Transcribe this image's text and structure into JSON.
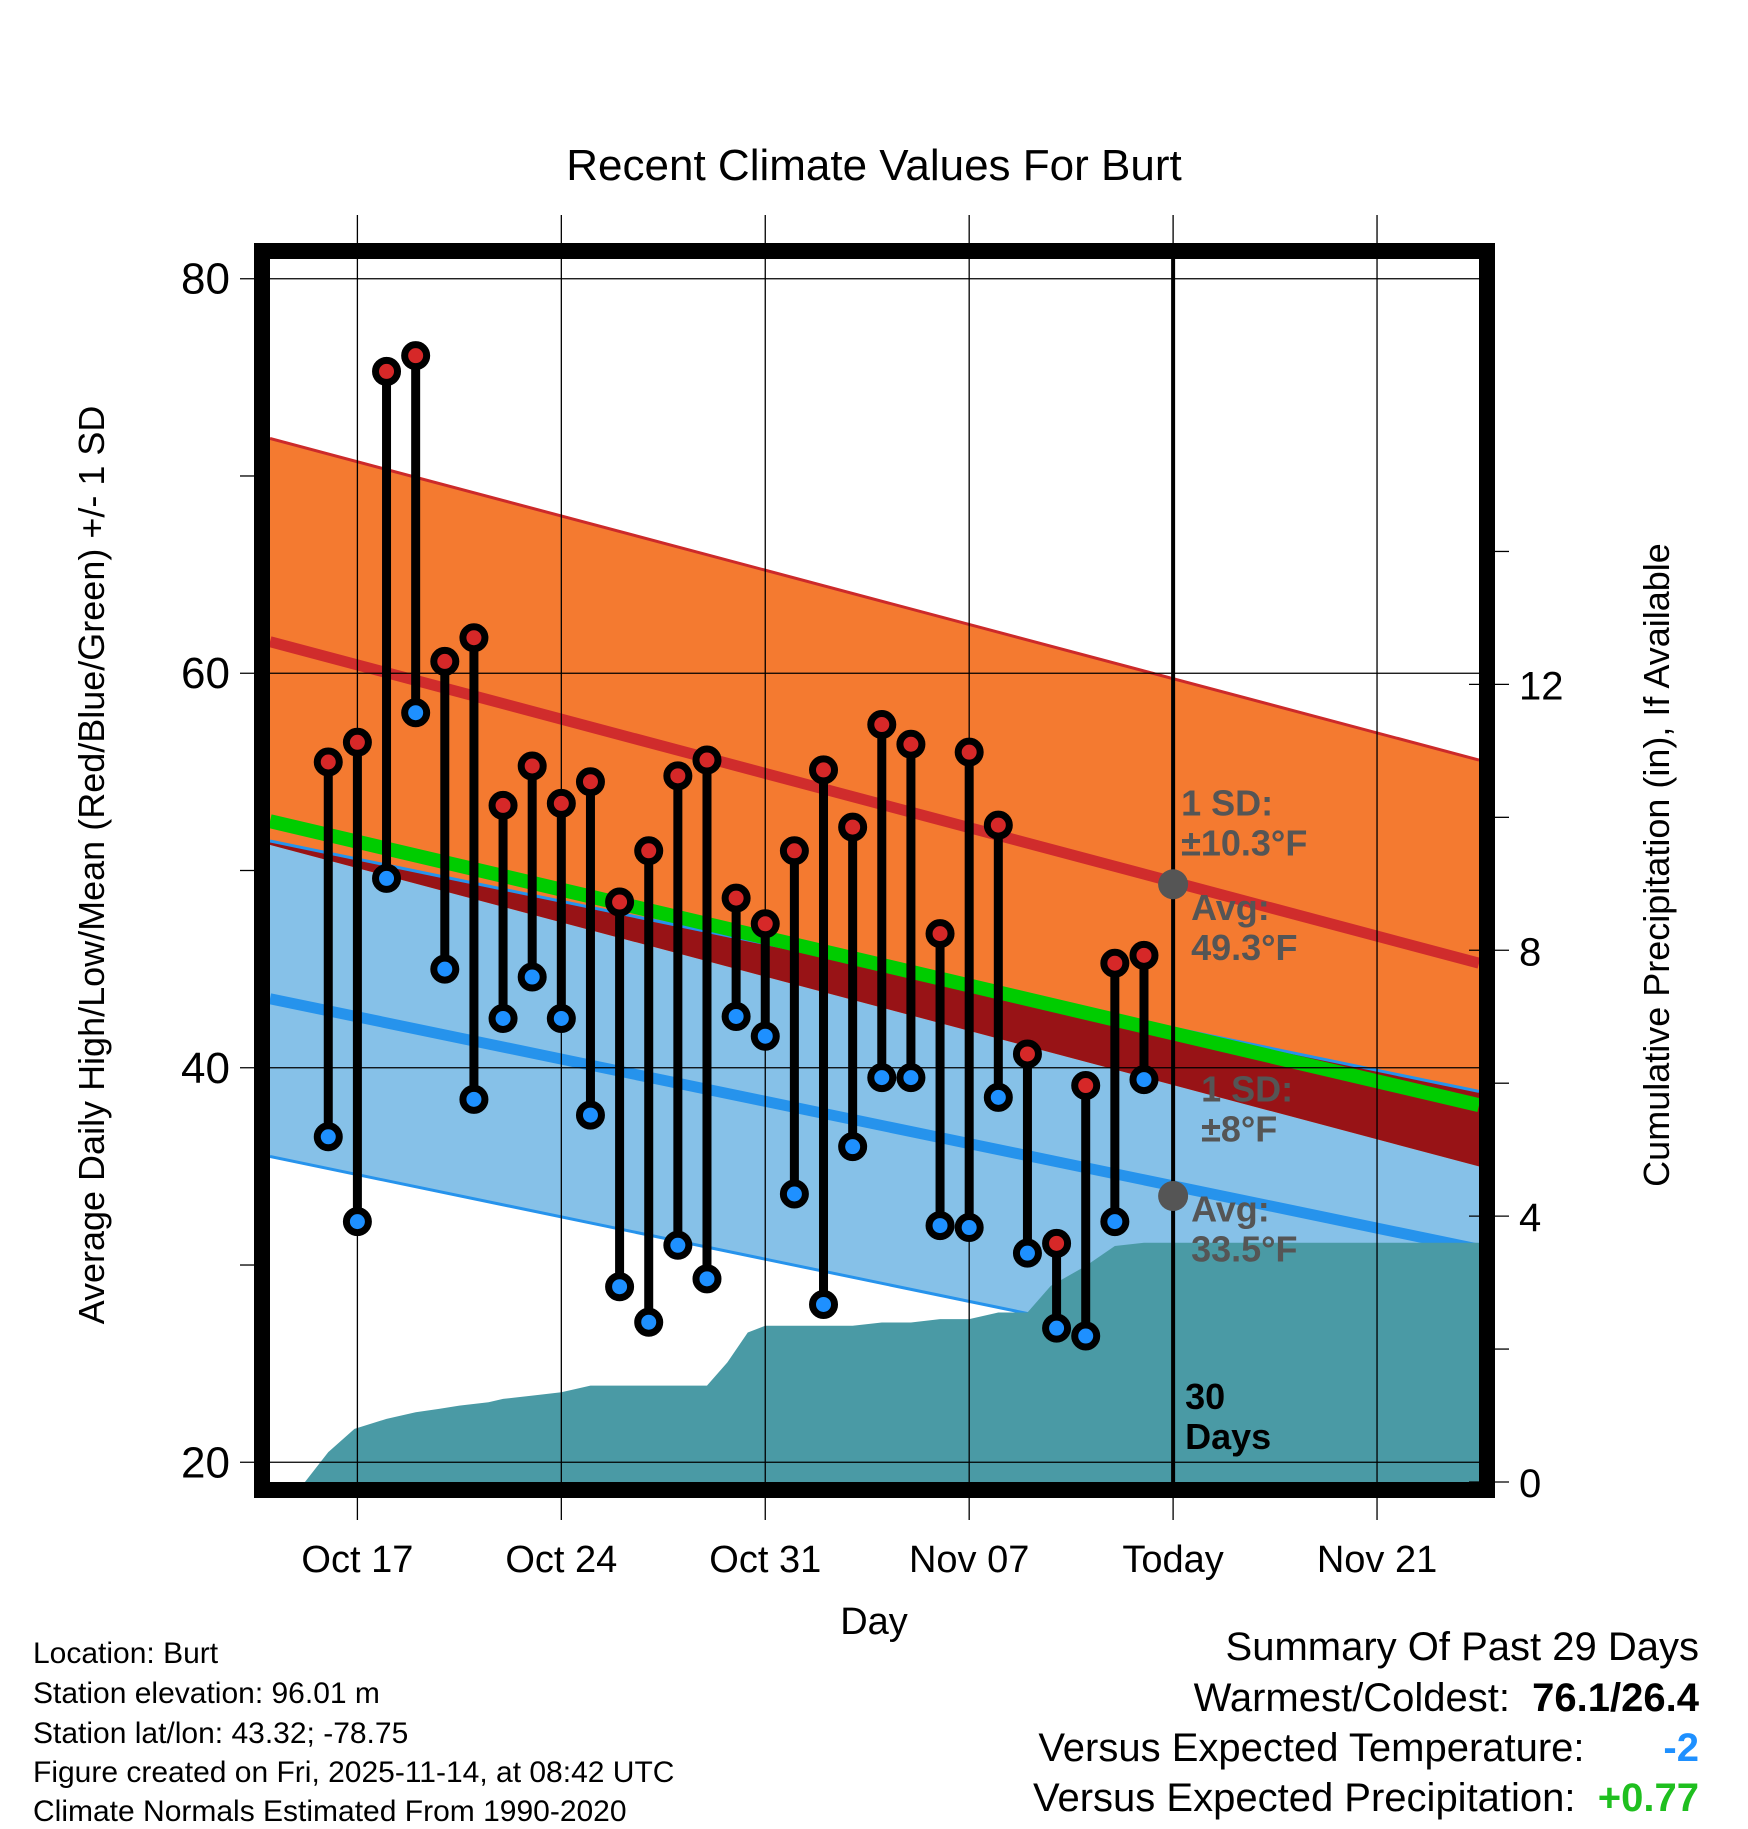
{
  "chart_data": {
    "type": "line",
    "title": "Recent Climate Values For Burt",
    "xlabel": "Day",
    "ylabel": "Average Daily High/Low/Mean (Red/Blue/Green) +/- 1 SD",
    "y2label": "Cumulative Precipitation (in), If Available",
    "ylim": [
      19,
      81
    ],
    "y2lim": [
      0,
      18.4
    ],
    "xlim": [
      -3,
      38.5
    ],
    "yticks": [
      "20",
      "40",
      "60",
      "80"
    ],
    "y2ticks": [
      "0",
      "4",
      "8",
      "12"
    ],
    "xticks": [
      {
        "day": 0,
        "label": "Oct 17"
      },
      {
        "day": 7,
        "label": "Oct 24"
      },
      {
        "day": 14,
        "label": "Oct 31"
      },
      {
        "day": 21,
        "label": "Nov 07"
      },
      {
        "day": 28,
        "label": "Today"
      },
      {
        "day": 35,
        "label": "Nov 21"
      }
    ],
    "today_day": 28,
    "today_label_lines": [
      "30",
      "Days"
    ],
    "normal_high": {
      "start": 61.6,
      "end": 45.3,
      "sd_start": 10.3,
      "sd_end": 10.3
    },
    "normal_low": {
      "start": 43.5,
      "end": 30.8,
      "sd_start": 8,
      "sd_end": 8
    },
    "normal_mean": {
      "start": 52.5,
      "end": 38.1
    },
    "high_annotation": {
      "sd_lines": [
        "1 SD:",
        "±10.3°F"
      ],
      "avg_lines": [
        "Avg:",
        "49.3°F"
      ],
      "avg_value": 49.3
    },
    "low_annotation": {
      "sd_lines": [
        "1 SD:",
        "±8°F"
      ],
      "avg_lines": [
        "Avg:",
        "33.5°F"
      ],
      "avg_value": 33.5
    },
    "days": [
      -1,
      0,
      1,
      2,
      3,
      4,
      5,
      6,
      7,
      8,
      9,
      10,
      11,
      12,
      13,
      14,
      15,
      16,
      17,
      18,
      19,
      20,
      21,
      22,
      23,
      24,
      25,
      26,
      27
    ],
    "highs": [
      55.5,
      56.5,
      75.3,
      76.1,
      60.6,
      61.8,
      53.3,
      55.3,
      53.4,
      54.5,
      48.4,
      51.0,
      54.8,
      55.6,
      48.6,
      47.3,
      51.0,
      55.1,
      52.2,
      57.4,
      56.4,
      46.8,
      56.0,
      52.3,
      40.7,
      31.1,
      39.1,
      45.3,
      45.7
    ],
    "lows": [
      36.5,
      32.2,
      49.6,
      58.0,
      45.0,
      38.4,
      42.5,
      44.6,
      42.5,
      37.6,
      28.9,
      27.1,
      31.0,
      29.3,
      42.6,
      41.6,
      33.6,
      28.0,
      36.0,
      39.5,
      39.5,
      32.0,
      31.9,
      38.5,
      30.6,
      26.8,
      26.4,
      32.2,
      39.4
    ],
    "precip": {
      "days": [
        -1.8,
        -1,
        -0.1,
        1,
        2,
        2.8,
        3.5,
        4.5,
        5,
        6,
        7,
        8,
        8.8,
        9.5,
        10.4,
        12,
        12.7,
        13.4,
        14,
        15,
        16,
        17,
        18,
        19,
        20,
        21,
        22,
        23,
        23.8,
        25,
        26,
        27,
        28,
        38.5
      ],
      "values": [
        0,
        0.45,
        0.8,
        0.95,
        1.05,
        1.1,
        1.15,
        1.2,
        1.25,
        1.3,
        1.35,
        1.45,
        1.45,
        1.45,
        1.45,
        1.45,
        1.8,
        2.25,
        2.35,
        2.35,
        2.35,
        2.35,
        2.4,
        2.4,
        2.45,
        2.45,
        2.55,
        2.55,
        2.95,
        3.25,
        3.55,
        3.6,
        3.6,
        3.6
      ]
    },
    "colors": {
      "high_band": "#f47a30",
      "high_band_edge": "#cc2a2a",
      "high_line": "#d02c2c",
      "low_band": "#86c1e8",
      "low_band_edge": "#2693ec",
      "low_line": "#2693ec",
      "mean_line": "#00cc00",
      "overlap": "#981316",
      "precip": "#4a9aa5",
      "high_marker": "#d62828",
      "low_marker": "#1e90ff",
      "annotation": "#555555"
    }
  },
  "footer": {
    "location": "Location: Burt",
    "elevation": "Station elevation: 96.01 m",
    "latlon": "Station lat/lon: 43.32; -78.75",
    "created": "Figure created on Fri, 2025-11-14, at 08:42 UTC",
    "normals": "Climate Normals Estimated From 1990-2020"
  },
  "summary": {
    "heading": "Summary Of Past 29 Days",
    "warm_cold_label": "Warmest/Coldest:",
    "warm_cold_value": "76.1/26.4",
    "temp_label": "Versus Expected Temperature:",
    "temp_value": "-2",
    "temp_color": "#1e90ff",
    "precip_label": "Versus Expected Precipitation:",
    "precip_value": "+0.77",
    "precip_color": "#1fbf1f"
  }
}
